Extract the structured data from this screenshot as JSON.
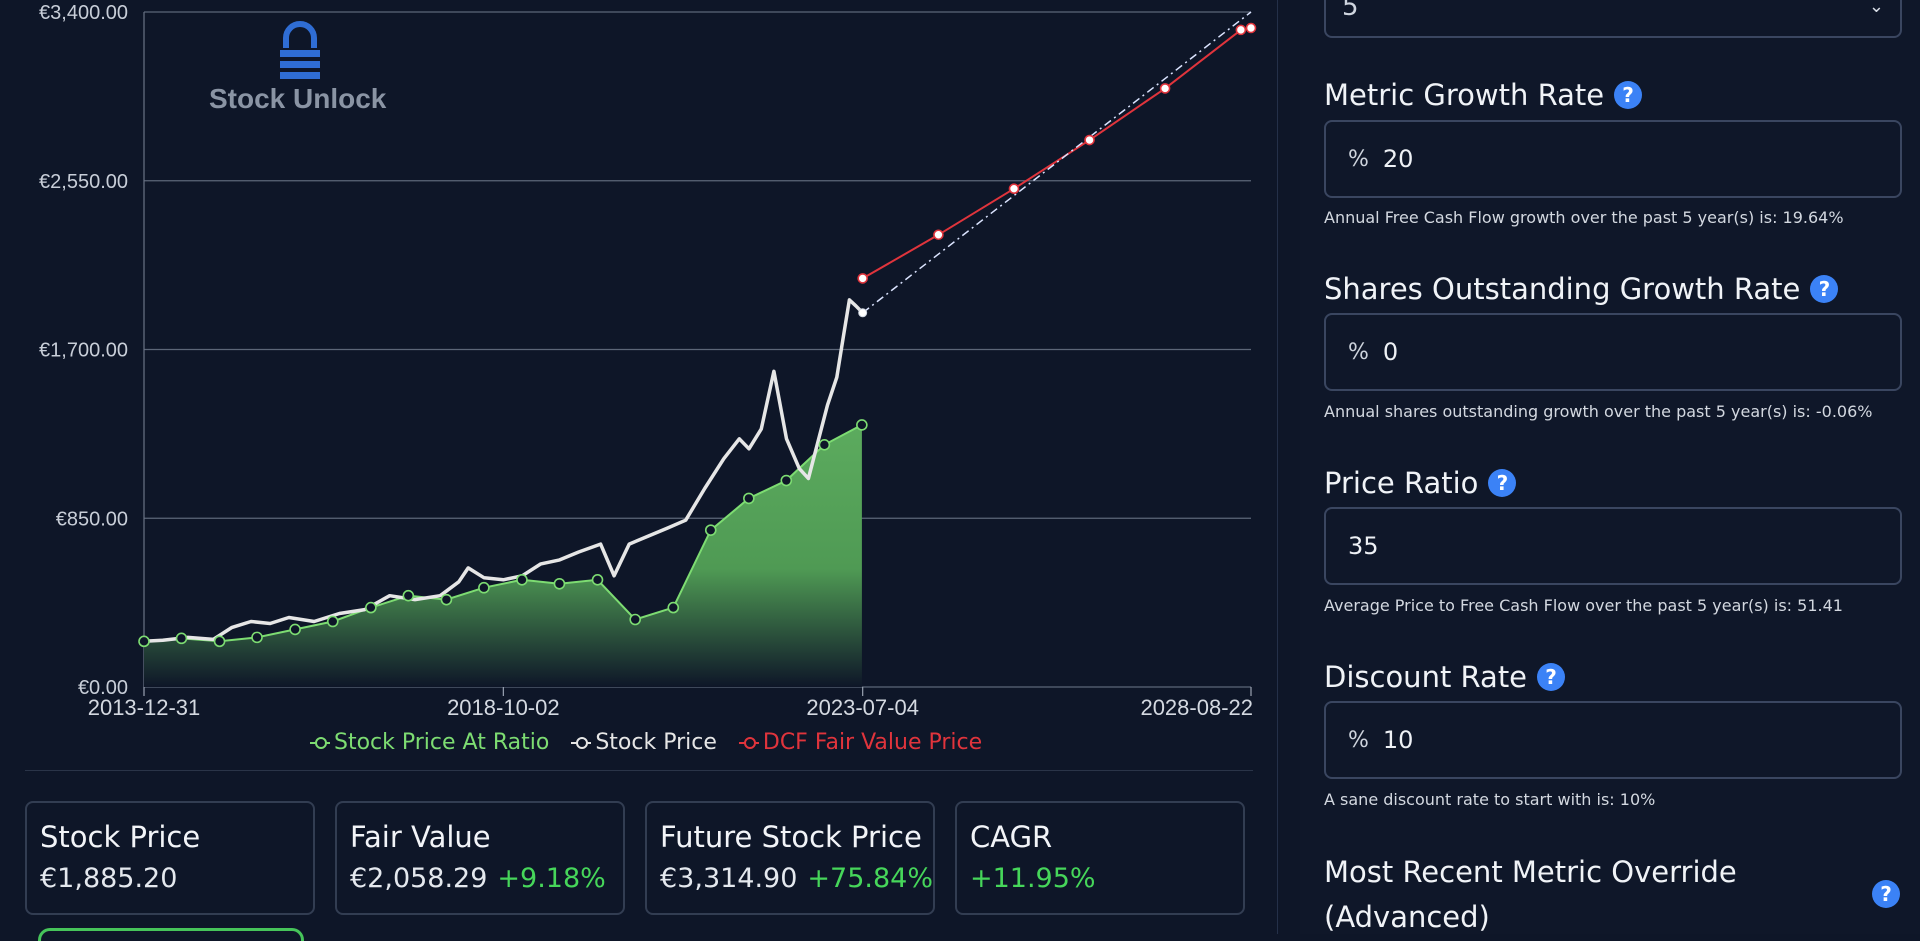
{
  "logo": {
    "text": "Stock Unlock",
    "icon": "stock-unlock-padlock-icon"
  },
  "chart_data": {
    "type": "line",
    "title": "",
    "xlabel": "",
    "ylabel": "",
    "ylim": [
      0,
      3400
    ],
    "y_ticks": [
      "€0.00",
      "€850.00",
      "€1,700.00",
      "€2,550.00",
      "€3,400.00"
    ],
    "y_tick_values": [
      0,
      850,
      1700,
      2550,
      3400
    ],
    "x_ticks": [
      "2013-12-31",
      "2018-10-02",
      "2023-07-04",
      "2028-08-22"
    ],
    "x_tick_values": [
      "2013-12-31",
      "2018-10-02",
      "2023-07-04",
      "2028-08-22"
    ],
    "xlim": [
      "2013-12-31",
      "2028-08-22"
    ],
    "legend_position": "bottom",
    "grid": true,
    "series": [
      {
        "name": "Stock Price At Ratio",
        "color": "#7ddc72",
        "style": "area",
        "points": [
          [
            "2013-12-31",
            230
          ],
          [
            "2014-06-30",
            245
          ],
          [
            "2014-12-31",
            230
          ],
          [
            "2015-06-30",
            250
          ],
          [
            "2015-12-31",
            290
          ],
          [
            "2016-06-30",
            330
          ],
          [
            "2016-12-31",
            400
          ],
          [
            "2017-06-30",
            460
          ],
          [
            "2017-12-31",
            440
          ],
          [
            "2018-06-30",
            500
          ],
          [
            "2018-12-31",
            540
          ],
          [
            "2019-06-30",
            520
          ],
          [
            "2019-12-31",
            540
          ],
          [
            "2020-06-30",
            340
          ],
          [
            "2020-12-31",
            400
          ],
          [
            "2021-06-30",
            790
          ],
          [
            "2021-12-31",
            950
          ],
          [
            "2022-06-30",
            1040
          ],
          [
            "2022-12-31",
            1220
          ],
          [
            "2023-06-30",
            1320
          ]
        ]
      },
      {
        "name": "Stock Price",
        "color": "#e6e6e6",
        "style": "line",
        "points": [
          [
            "2013-12-31",
            230
          ],
          [
            "2014-04-01",
            235
          ],
          [
            "2014-08-01",
            250
          ],
          [
            "2014-12-01",
            240
          ],
          [
            "2015-03-01",
            300
          ],
          [
            "2015-06-01",
            330
          ],
          [
            "2015-09-01",
            320
          ],
          [
            "2015-12-01",
            350
          ],
          [
            "2016-04-01",
            330
          ],
          [
            "2016-08-01",
            370
          ],
          [
            "2016-12-01",
            390
          ],
          [
            "2017-04-01",
            460
          ],
          [
            "2017-08-01",
            440
          ],
          [
            "2017-12-01",
            460
          ],
          [
            "2018-03-01",
            530
          ],
          [
            "2018-04-15",
            600
          ],
          [
            "2018-07-01",
            550
          ],
          [
            "2018-10-02",
            540
          ],
          [
            "2019-01-01",
            560
          ],
          [
            "2019-04-01",
            620
          ],
          [
            "2019-07-01",
            640
          ],
          [
            "2019-10-01",
            680
          ],
          [
            "2020-01-15",
            720
          ],
          [
            "2020-03-20",
            560
          ],
          [
            "2020-06-01",
            720
          ],
          [
            "2020-09-01",
            760
          ],
          [
            "2020-12-01",
            800
          ],
          [
            "2021-03-01",
            840
          ],
          [
            "2021-06-01",
            1000
          ],
          [
            "2021-09-01",
            1150
          ],
          [
            "2021-11-15",
            1250
          ],
          [
            "2022-01-01",
            1200
          ],
          [
            "2022-03-01",
            1300
          ],
          [
            "2022-05-01",
            1590
          ],
          [
            "2022-07-01",
            1250
          ],
          [
            "2022-09-01",
            1100
          ],
          [
            "2022-10-15",
            1050
          ],
          [
            "2022-12-01",
            1240
          ],
          [
            "2023-01-15",
            1420
          ],
          [
            "2023-03-01",
            1560
          ],
          [
            "2023-04-01",
            1760
          ],
          [
            "2023-05-01",
            1950
          ],
          [
            "2023-06-01",
            1920
          ],
          [
            "2023-07-04",
            1885
          ]
        ]
      },
      {
        "name": "DCF Fair Value Price",
        "color": "#e0343c",
        "style": "line",
        "points": [
          [
            "2023-07-04",
            2058
          ],
          [
            "2024-07-04",
            2278
          ],
          [
            "2025-07-04",
            2510
          ],
          [
            "2026-07-04",
            2755
          ],
          [
            "2027-07-04",
            3015
          ],
          [
            "2028-07-04",
            3310
          ]
        ]
      },
      {
        "name": "",
        "color": "#dbe4ff",
        "style": "dash-dot",
        "points": [
          [
            "2023-07-04",
            1885
          ],
          [
            "2028-08-22",
            3400
          ]
        ]
      }
    ]
  },
  "cards": [
    {
      "title": "Stock Price",
      "value": "€1,885.20",
      "change": ""
    },
    {
      "title": "Fair Value",
      "value": "€2,058.29",
      "change": "+9.18%"
    },
    {
      "title": "Future Stock Price",
      "value": "€3,314.90",
      "change": "+75.84%"
    },
    {
      "title": "CAGR",
      "value": "",
      "change": "+11.95%"
    }
  ],
  "form": {
    "top_select": {
      "value": "5",
      "icon": "chevron-down-icon"
    },
    "fields": [
      {
        "label": "Metric Growth Rate",
        "prefix": "%",
        "value": "20",
        "hint": "Annual Free Cash Flow growth over the past 5 year(s) is: 19.64%"
      },
      {
        "label": "Shares Outstanding Growth Rate",
        "prefix": "%",
        "value": "0",
        "hint": "Annual shares outstanding growth over the past 5 year(s) is: -0.06%"
      },
      {
        "label": "Price Ratio",
        "prefix": "",
        "value": "35",
        "hint": "Average Price to Free Cash Flow over the past 5 year(s) is: 51.41"
      },
      {
        "label": "Discount Rate",
        "prefix": "%",
        "value": "10",
        "hint": "A sane discount rate to start with is: 10%"
      }
    ],
    "override_label": "Most Recent Metric Override (Advanced)",
    "help_icon_glyph": "?"
  }
}
